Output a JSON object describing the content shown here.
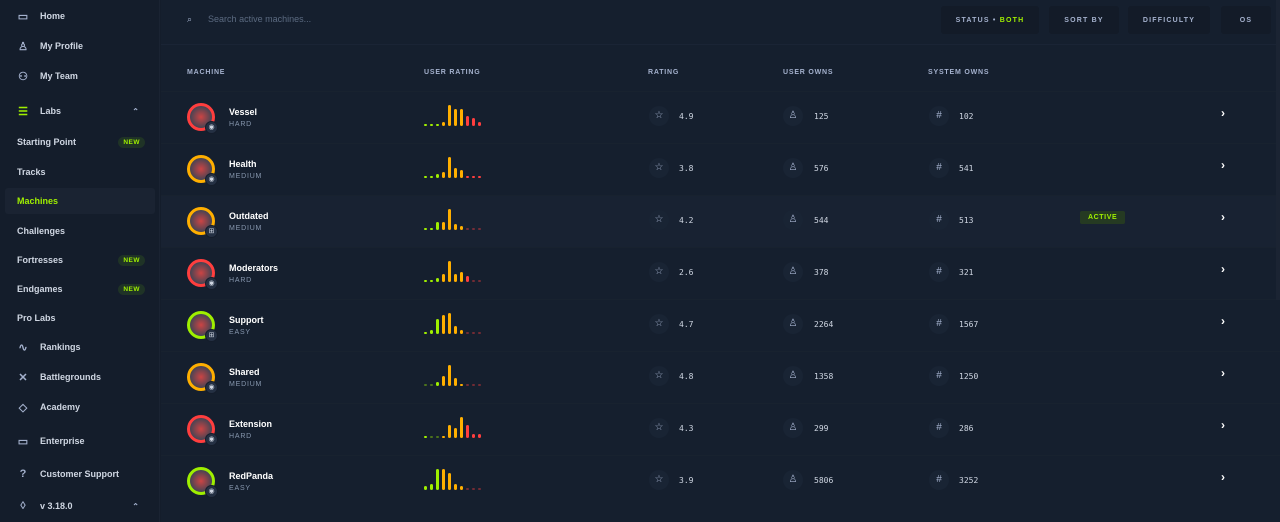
{
  "sidebar": {
    "items": [
      {
        "label": "Home",
        "icon": "monitor-icon",
        "glyph": "▭"
      },
      {
        "label": "My Profile",
        "icon": "user-icon",
        "glyph": "♙"
      },
      {
        "label": "My Team",
        "icon": "team-icon",
        "glyph": "⚇"
      },
      {
        "label": "Labs",
        "icon": "labs-icon",
        "glyph": "☰"
      },
      {
        "label": "Starting Point",
        "badge": "NEW"
      },
      {
        "label": "Tracks"
      },
      {
        "label": "Machines",
        "active": true
      },
      {
        "label": "Challenges"
      },
      {
        "label": "Fortresses",
        "badge": "NEW"
      },
      {
        "label": "Endgames",
        "badge": "NEW"
      },
      {
        "label": "Pro Labs"
      },
      {
        "label": "Rankings",
        "icon": "rankings-icon",
        "glyph": "∿"
      },
      {
        "label": "Battlegrounds",
        "icon": "swords-icon",
        "glyph": "✕"
      },
      {
        "label": "Academy",
        "icon": "graduation-cap-icon",
        "glyph": "◇"
      },
      {
        "label": "Enterprise",
        "icon": "laptop-icon",
        "glyph": "▭"
      },
      {
        "label": "Customer Support",
        "icon": "help-icon",
        "glyph": "?"
      },
      {
        "label": "v 3.18.0",
        "icon": "tag-icon",
        "glyph": "◊"
      }
    ]
  },
  "search": {
    "placeholder": "Search active machines..."
  },
  "filters": {
    "status_label": "STATUS",
    "status_value": "BOTH",
    "sort": "SORT BY",
    "difficulty": "DIFFICULTY",
    "os": "OS"
  },
  "columns": [
    "MACHINE",
    "USER RATING",
    "RATING",
    "USER OWNS",
    "SYSTEM OWNS"
  ],
  "colors": {
    "accent": "#9fef00",
    "easy": "#9fef00",
    "medium": "#ffaf00",
    "hard": "#ff3e3e",
    "bar_low": "#9fef00",
    "bar_mid": "#ffaf00",
    "bar_high": "#ff3e3e"
  },
  "machines": [
    {
      "name": "Vessel",
      "difficulty": "HARD",
      "os": "linux",
      "rating": "4.9",
      "user_owns": "125",
      "system_owns": "102",
      "dist": [
        1,
        1,
        1,
        2,
        10,
        8,
        8,
        5,
        4,
        2
      ],
      "status": ""
    },
    {
      "name": "Health",
      "difficulty": "MEDIUM",
      "os": "linux",
      "rating": "3.8",
      "user_owns": "576",
      "system_owns": "541",
      "dist": [
        1,
        1,
        2,
        3,
        10,
        5,
        4,
        1,
        1,
        1
      ],
      "status": ""
    },
    {
      "name": "Outdated",
      "difficulty": "MEDIUM",
      "os": "windows",
      "rating": "4.2",
      "user_owns": "544",
      "system_owns": "513",
      "dist": [
        1,
        1,
        4,
        4,
        10,
        3,
        2,
        0.5,
        0.5,
        0.5
      ],
      "status": "ACTIVE"
    },
    {
      "name": "Moderators",
      "difficulty": "HARD",
      "os": "linux",
      "rating": "2.6",
      "user_owns": "378",
      "system_owns": "321",
      "dist": [
        1,
        1,
        2,
        4,
        10,
        4,
        5,
        3,
        0.5,
        0.5
      ],
      "status": ""
    },
    {
      "name": "Support",
      "difficulty": "EASY",
      "os": "windows",
      "rating": "4.7",
      "user_owns": "2264",
      "system_owns": "1567",
      "dist": [
        1,
        2,
        7,
        9,
        10,
        4,
        2,
        0.5,
        0.5,
        0.5
      ],
      "status": ""
    },
    {
      "name": "Shared",
      "difficulty": "MEDIUM",
      "os": "linux",
      "rating": "4.8",
      "user_owns": "1358",
      "system_owns": "1250",
      "dist": [
        0.5,
        0.5,
        2,
        5,
        10,
        4,
        1,
        0.5,
        0.5,
        0.5
      ],
      "status": ""
    },
    {
      "name": "Extension",
      "difficulty": "HARD",
      "os": "linux",
      "rating": "4.3",
      "user_owns": "299",
      "system_owns": "286",
      "dist": [
        1,
        0.5,
        0.5,
        1,
        6,
        5,
        10,
        6,
        2,
        2
      ],
      "status": ""
    },
    {
      "name": "RedPanda",
      "difficulty": "EASY",
      "os": "linux",
      "rating": "3.9",
      "user_owns": "5806",
      "system_owns": "3252",
      "dist": [
        2,
        3,
        10,
        10,
        8,
        3,
        2,
        0.5,
        0.5,
        0.5
      ],
      "status": ""
    }
  ]
}
